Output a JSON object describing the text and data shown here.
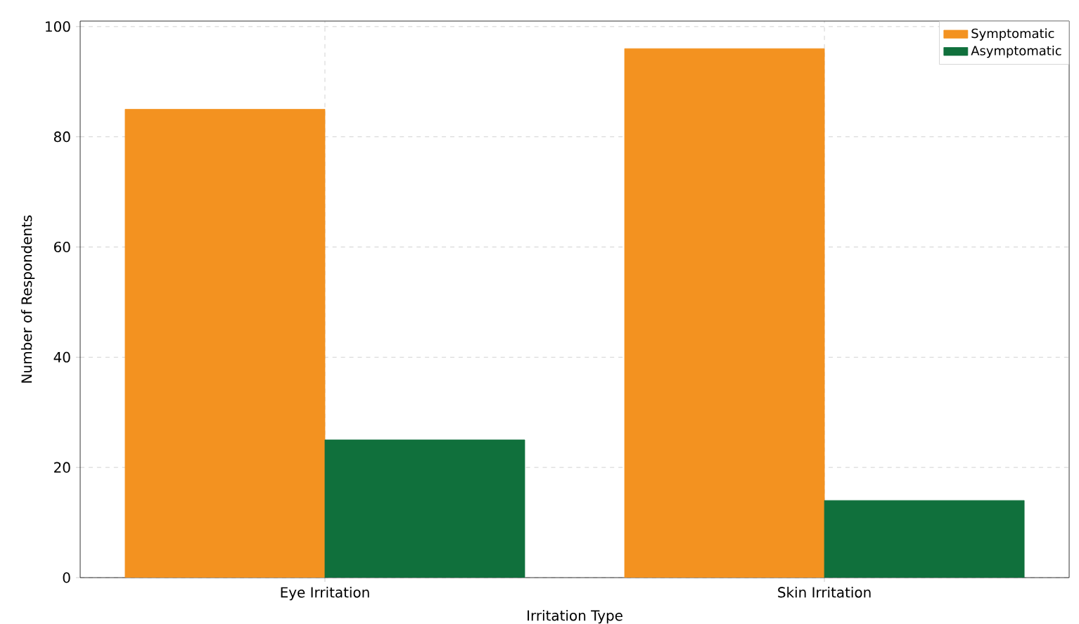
{
  "chart_data": {
    "type": "bar",
    "xlabel": "Irritation Type",
    "ylabel": "Number of Respondents",
    "categories": [
      "Eye Irritation",
      "Skin Irritation"
    ],
    "series": [
      {
        "name": "Symptomatic",
        "color": "#f39220",
        "values": [
          85,
          96
        ]
      },
      {
        "name": "Asymptomatic",
        "color": "#10703c",
        "values": [
          25,
          14
        ]
      }
    ],
    "ylim": [
      0,
      101
    ],
    "yticks": [
      0,
      20,
      40,
      60,
      80,
      100
    ],
    "grid": true,
    "legend": "top right"
  }
}
